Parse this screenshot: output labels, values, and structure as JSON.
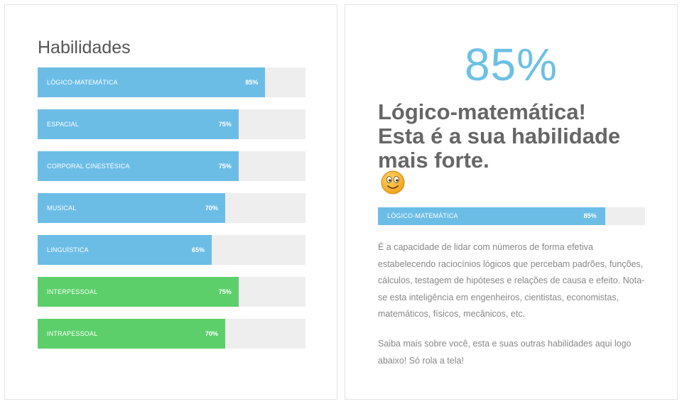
{
  "skills": {
    "title": "Habilidades",
    "items": [
      {
        "label": "LÓGICO-MATEMÁTICA",
        "value_text": "85%",
        "percent": 85,
        "color": "#6cbde6"
      },
      {
        "label": "ESPACIAL",
        "value_text": "75%",
        "percent": 75,
        "color": "#6cbde6"
      },
      {
        "label": "CORPORAL CINESTÉSICA",
        "value_text": "75%",
        "percent": 75,
        "color": "#6cbde6"
      },
      {
        "label": "MUSICAL",
        "value_text": "70%",
        "percent": 70,
        "color": "#6cbde6"
      },
      {
        "label": "LINGUÍSTICA",
        "value_text": "65%",
        "percent": 65,
        "color": "#6cbde6"
      },
      {
        "label": "INTERPESSOAL",
        "value_text": "75%",
        "percent": 75,
        "color": "#5ccf6b"
      },
      {
        "label": "INTRAPESSOAL",
        "value_text": "70%",
        "percent": 70,
        "color": "#5ccf6b"
      }
    ]
  },
  "result": {
    "big_percent": "85%",
    "headline_line1": "Lógico-matemática!",
    "headline_line2": "Esta é a sua habilidade",
    "headline_line3": "mais forte.",
    "emoji_icon": "smiley-face-icon",
    "bar": {
      "label": "LÓGICO-MATEMÁTICA",
      "value_text": "85%",
      "percent": 85,
      "color": "#6cbde6"
    },
    "description": "É a capacidade de lidar com números de forma efetiva estabelecendo raciocínios lógicos que percebam padrões, funções, cálculos, testagem de hipóteses e relações de causa e efeito. Nota-se esta inteligência em engenheiros, cientistas, economistas, matemáticos, físicos, mecânicos, etc.",
    "cta": "Saiba mais sobre você, esta e suas outras habilidades aqui logo abaixo! Só rola a tela!"
  },
  "colors": {
    "accent_blue": "#6cbde6",
    "accent_green": "#5ccf6b",
    "big_percent": "#6cc0e5",
    "track": "#eeeeee"
  }
}
